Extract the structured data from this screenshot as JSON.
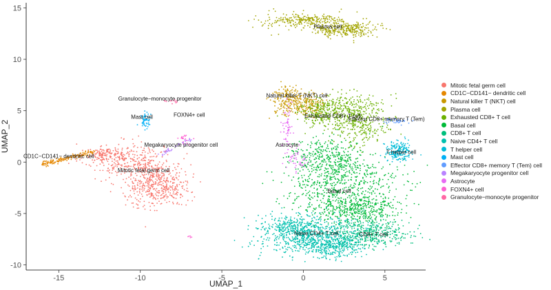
{
  "chart_data": {
    "type": "scatter",
    "title": "",
    "xlabel": "UMAP_1",
    "ylabel": "UMAP_2",
    "xlim": [
      -17,
      7.5
    ],
    "ylim": [
      -10.5,
      15.5
    ],
    "xticks": [
      -15,
      -10,
      -5,
      0,
      5
    ],
    "yticks": [
      -10,
      -5,
      0,
      5,
      10,
      15
    ],
    "grid": false,
    "legend_position": "right",
    "series": [
      {
        "name": "Mitotic fetal germ cell",
        "color": "#F8766D",
        "label_at": [
          -9.8,
          -1.0
        ],
        "point_count": 900,
        "blobs": [
          {
            "cx": -11.0,
            "cy": 0.2,
            "sx": 1.2,
            "sy": 0.8,
            "n": 250
          },
          {
            "cx": -9.5,
            "cy": -1.7,
            "sx": 0.9,
            "sy": 1.4,
            "n": 350
          },
          {
            "cx": -8.3,
            "cy": -2.2,
            "sx": 0.7,
            "sy": 1.0,
            "n": 200
          },
          {
            "cx": -12.3,
            "cy": 0.8,
            "sx": 0.6,
            "sy": 0.3,
            "n": 100
          }
        ]
      },
      {
        "name": "CD1C−CD141− dendritic cell",
        "color": "#E58700",
        "label_at": [
          -15.0,
          0.4
        ],
        "point_count": 150,
        "line": {
          "x0": -16.0,
          "y0": -0.2,
          "x1": -12.8,
          "y1": 1.0,
          "spread": 0.12
        }
      },
      {
        "name": "Natural killer T (NKT) cell",
        "color": "#C99800",
        "label_at": [
          -0.4,
          6.3
        ],
        "point_count": 350,
        "blobs": [
          {
            "cx": -0.8,
            "cy": 6.0,
            "sx": 0.6,
            "sy": 0.7,
            "n": 220
          },
          {
            "cx": 0.4,
            "cy": 5.5,
            "sx": 0.5,
            "sy": 0.6,
            "n": 130
          }
        ]
      },
      {
        "name": "Plasma cell",
        "color": "#A3A500",
        "label_at": [
          1.5,
          13.0
        ],
        "point_count": 550,
        "blobs": [
          {
            "cx": 0.0,
            "cy": 13.8,
            "sx": 1.2,
            "sy": 0.35,
            "n": 250
          },
          {
            "cx": 2.5,
            "cy": 12.9,
            "sx": 1.1,
            "sy": 0.4,
            "n": 300
          }
        ]
      },
      {
        "name": "Exhausted CD8+ T cell",
        "color": "#6BB100",
        "label_at": [
          3.0,
          4.7
        ],
        "point_count": 700,
        "blobs": [
          {
            "cx": 2.3,
            "cy": 5.2,
            "sx": 1.2,
            "sy": 0.8,
            "n": 350
          },
          {
            "cx": 3.5,
            "cy": 3.5,
            "sx": 0.9,
            "sy": 1.0,
            "n": 250
          },
          {
            "cx": 1.0,
            "cy": 4.5,
            "sx": 0.6,
            "sy": 0.5,
            "n": 100
          }
        ]
      },
      {
        "name": "Basal cell",
        "color": "#00BA38",
        "label_at": [
          2.2,
          -3.0
        ],
        "point_count": 1300,
        "blobs": [
          {
            "cx": 2.5,
            "cy": -2.5,
            "sx": 1.7,
            "sy": 1.6,
            "n": 700
          },
          {
            "cx": 1.5,
            "cy": 0.5,
            "sx": 1.0,
            "sy": 1.0,
            "n": 300
          },
          {
            "cx": 3.5,
            "cy": -4.6,
            "sx": 1.2,
            "sy": 0.7,
            "n": 300
          }
        ]
      },
      {
        "name": "CD8+ T cell",
        "color": "#00BF7D",
        "label_at": [
          4.3,
          -7.2
        ],
        "point_count": 450,
        "blobs": [
          {
            "cx": 4.0,
            "cy": -7.0,
            "sx": 1.2,
            "sy": 0.7,
            "n": 450
          }
        ]
      },
      {
        "name": "Naive CD4+ T cell",
        "color": "#00C0AF",
        "label_at": [
          0.8,
          -7.1
        ],
        "point_count": 1100,
        "blobs": [
          {
            "cx": 0.2,
            "cy": -7.0,
            "sx": 1.5,
            "sy": 0.9,
            "n": 650
          },
          {
            "cx": 1.8,
            "cy": -8.2,
            "sx": 1.0,
            "sy": 0.6,
            "n": 300
          },
          {
            "cx": -0.8,
            "cy": -6.2,
            "sx": 0.8,
            "sy": 0.5,
            "n": 150
          }
        ]
      },
      {
        "name": "T helper cell",
        "color": "#00BCD8",
        "label_at": [
          6.0,
          0.8
        ],
        "point_count": 200,
        "blobs": [
          {
            "cx": 5.8,
            "cy": 1.0,
            "sx": 0.4,
            "sy": 0.5,
            "n": 200
          }
        ]
      },
      {
        "name": "Mast cell",
        "color": "#00B0F6",
        "label_at": [
          -9.9,
          4.2
        ],
        "point_count": 60,
        "blobs": [
          {
            "cx": -9.7,
            "cy": 4.0,
            "sx": 0.15,
            "sy": 0.4,
            "n": 60
          }
        ]
      },
      {
        "name": "Effector CD8+ memory T (Tem) cell",
        "color": "#619CFF",
        "label_at": [
          5.1,
          4.0
        ],
        "point_count": 40,
        "blobs": [
          {
            "cx": 5.6,
            "cy": 4.0,
            "sx": 0.35,
            "sy": 0.15,
            "n": 40
          }
        ]
      },
      {
        "name": "Megakaryocyte progenitor cell",
        "color": "#B983FF",
        "label_at": [
          -7.5,
          1.5
        ],
        "point_count": 40,
        "line": {
          "x0": -8.8,
          "y0": 0.7,
          "x1": -6.8,
          "y1": 2.3,
          "spread": 0.12
        }
      },
      {
        "name": "Astrocyte",
        "color": "#E76BF3",
        "label_at": [
          -1.0,
          1.5
        ],
        "point_count": 100,
        "blobs": [
          {
            "cx": -1.0,
            "cy": 3.0,
            "sx": 0.2,
            "sy": 1.2,
            "n": 60
          },
          {
            "cx": -0.3,
            "cy": 0.2,
            "sx": 0.35,
            "sy": 0.5,
            "n": 40
          }
        ]
      },
      {
        "name": "FOXN4+ cell",
        "color": "#FD61D1",
        "label_at": [
          -7.0,
          4.4
        ],
        "point_count": 25,
        "blobs": [
          {
            "cx": -7.2,
            "cy": 2.3,
            "sx": 0.2,
            "sy": 0.3,
            "n": 20
          },
          {
            "cx": -7.0,
            "cy": -7.2,
            "sx": 0.1,
            "sy": 0.1,
            "n": 5
          }
        ]
      },
      {
        "name": "Granulocyte−monocyte progenitor",
        "color": "#FF67A4",
        "label_at": [
          -8.8,
          6.0
        ],
        "point_count": 12,
        "blobs": [
          {
            "cx": -8.2,
            "cy": 5.9,
            "sx": 0.25,
            "sy": 0.15,
            "n": 12
          }
        ]
      }
    ],
    "annotations": [
      {
        "text": "Plasma cell",
        "x": 1.5,
        "y": 13.0
      },
      {
        "text": "Natural killer T (NKT) cell",
        "x": -0.4,
        "y": 6.3
      },
      {
        "text": "Granulocyte−monocyte progenitor",
        "x": -8.8,
        "y": 6.0
      },
      {
        "text": "Mast cell",
        "x": -9.9,
        "y": 4.2
      },
      {
        "text": "FOXN4+ cell",
        "x": -7.0,
        "y": 4.4
      },
      {
        "text": "Exhausted CD8+ T cell",
        "x": 1.8,
        "y": 4.3
      },
      {
        "text": "Effector CD8+ memory T (Tem)",
        "x": 5.1,
        "y": 4.0
      },
      {
        "text": "Megakaryocyte progenitor cell",
        "x": -7.5,
        "y": 1.5
      },
      {
        "text": "Astrocyte",
        "x": -1.0,
        "y": 1.5
      },
      {
        "text": "T helper cell",
        "x": 6.0,
        "y": 0.8
      },
      {
        "text": "CD1C−CD141− dendritic cell",
        "x": -15.0,
        "y": 0.4
      },
      {
        "text": "Mitotic fetal germ cell",
        "x": -9.8,
        "y": -1.0
      },
      {
        "text": "Basal cell",
        "x": 2.2,
        "y": -3.0
      },
      {
        "text": "Naive CD4+ T cell",
        "x": 0.8,
        "y": -7.1
      },
      {
        "text": "CD8+ T cell",
        "x": 4.3,
        "y": -7.2
      }
    ]
  }
}
